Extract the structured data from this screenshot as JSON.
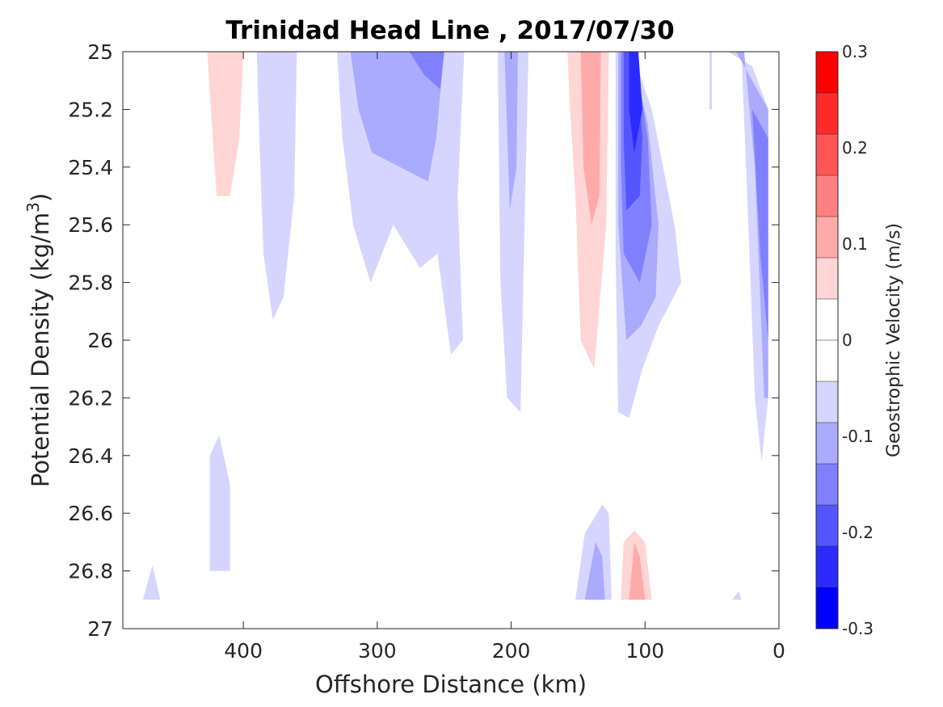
{
  "chart_data": {
    "type": "heatmap",
    "subtype": "filled-contour",
    "title": "Trinidad Head Line , 2017/07/30",
    "xlabel": "Offshore Distance (km)",
    "ylabel": "Potential Density (kg/m",
    "ylabel_sup": "3",
    "ylabel_close": ")",
    "xlim": [
      490,
      0
    ],
    "x_reversed": true,
    "ylim": [
      25,
      27
    ],
    "y_reversed": true,
    "xticks": [
      400,
      300,
      200,
      100,
      0
    ],
    "xtick_labels": [
      "400",
      "300",
      "200",
      "100",
      "0"
    ],
    "yticks": [
      25,
      25.2,
      25.4,
      25.6,
      25.8,
      26,
      26.2,
      26.4,
      26.6,
      26.8,
      27
    ],
    "ytick_labels": [
      "25",
      "25.2",
      "25.4",
      "25.6",
      "25.8",
      "26",
      "26.2",
      "26.4",
      "26.6",
      "26.8",
      "27"
    ],
    "grid": false,
    "colorbar": {
      "label": "Geostrophic Velocity (m/s)",
      "limits": [
        -0.3,
        0.3
      ],
      "levels": [
        -0.3,
        -0.25,
        -0.2,
        -0.15,
        -0.1,
        -0.05,
        0,
        0.05,
        0.1,
        0.15,
        0.2,
        0.25,
        0.3
      ],
      "ticks": [
        0.3,
        0.2,
        0.1,
        0,
        -0.1,
        -0.2,
        -0.3
      ],
      "tick_labels": [
        "0.3",
        "0.2",
        "0.1",
        "0",
        "-0.1",
        "-0.2",
        "-0.3"
      ],
      "colors_low_to_high": [
        "#0000ff",
        "#2b2bff",
        "#5555ff",
        "#8080ff",
        "#aaaaff",
        "#d5d5ff",
        "#ffffff",
        "#ffffff",
        "#ffd5d5",
        "#ffaaaa",
        "#ff8080",
        "#ff5555",
        "#ff2b2b",
        "#ff0000"
      ]
    },
    "regions": [
      {
        "v": 0.025,
        "pts": [
          [
            478,
            25.0
          ],
          [
            463,
            25.0
          ],
          [
            460,
            25.15
          ],
          [
            470,
            25.3
          ],
          [
            476,
            25.4
          ],
          [
            478,
            25.2
          ]
        ]
      },
      {
        "v": 0.025,
        "pts": [
          [
            440,
            25.0
          ],
          [
            395,
            25.0
          ],
          [
            397,
            25.4
          ],
          [
            402,
            25.7
          ],
          [
            412,
            25.8
          ],
          [
            425,
            25.8
          ],
          [
            430,
            25.5
          ],
          [
            437,
            25.2
          ]
        ]
      },
      {
        "v": 0.075,
        "pts": [
          [
            427,
            25.0
          ],
          [
            400,
            25.0
          ],
          [
            403,
            25.3
          ],
          [
            410,
            25.5
          ],
          [
            420,
            25.5
          ]
        ]
      },
      {
        "v": -0.025,
        "pts": [
          [
            390,
            25.0
          ],
          [
            360,
            25.0
          ],
          [
            362,
            25.5
          ],
          [
            370,
            25.85
          ],
          [
            378,
            25.93
          ],
          [
            385,
            25.7
          ],
          [
            388,
            25.3
          ]
        ]
      },
      {
        "v": -0.025,
        "pts": [
          [
            330,
            25.0
          ],
          [
            235,
            25.0
          ],
          [
            240,
            25.5
          ],
          [
            236,
            26.0
          ],
          [
            245,
            26.05
          ],
          [
            255,
            25.7
          ],
          [
            268,
            25.75
          ],
          [
            288,
            25.6
          ],
          [
            305,
            25.8
          ],
          [
            318,
            25.6
          ],
          [
            326,
            25.3
          ]
        ]
      },
      {
        "v": -0.075,
        "pts": [
          [
            320,
            25.0
          ],
          [
            250,
            25.0
          ],
          [
            256,
            25.3
          ],
          [
            262,
            25.45
          ],
          [
            283,
            25.4
          ],
          [
            304,
            25.35
          ],
          [
            314,
            25.2
          ]
        ]
      },
      {
        "v": -0.125,
        "pts": [
          [
            276,
            25.0
          ],
          [
            250,
            25.0
          ],
          [
            253,
            25.13
          ],
          [
            265,
            25.08
          ]
        ]
      },
      {
        "v": -0.025,
        "pts": [
          [
            210,
            25.0
          ],
          [
            187,
            25.0
          ],
          [
            190,
            25.6
          ],
          [
            193,
            26.25
          ],
          [
            203,
            26.2
          ],
          [
            208,
            25.8
          ]
        ]
      },
      {
        "v": -0.075,
        "pts": [
          [
            205,
            25.0
          ],
          [
            195,
            25.0
          ],
          [
            196,
            25.4
          ],
          [
            201,
            25.55
          ]
        ]
      },
      {
        "v": 0.025,
        "pts": [
          [
            172,
            25.0
          ],
          [
            125,
            25.0
          ],
          [
            127,
            25.6
          ],
          [
            131,
            26.3
          ],
          [
            146,
            26.35
          ],
          [
            155,
            26.0
          ],
          [
            165,
            25.6
          ],
          [
            172,
            25.2
          ]
        ]
      },
      {
        "v": 0.075,
        "pts": [
          [
            158,
            25.0
          ],
          [
            127,
            25.0
          ],
          [
            129,
            25.6
          ],
          [
            138,
            26.1
          ],
          [
            148,
            26.0
          ],
          [
            152,
            25.5
          ],
          [
            156,
            25.2
          ]
        ]
      },
      {
        "v": 0.125,
        "pts": [
          [
            148,
            25.0
          ],
          [
            133,
            25.0
          ],
          [
            134,
            25.5
          ],
          [
            140,
            25.6
          ],
          [
            146,
            25.4
          ]
        ]
      },
      {
        "v": -0.025,
        "pts": [
          [
            122,
            25.0
          ],
          [
            110,
            25.0
          ],
          [
            95,
            25.2
          ],
          [
            78,
            25.6
          ],
          [
            73,
            25.8
          ],
          [
            90,
            25.95
          ],
          [
            102,
            26.1
          ],
          [
            112,
            26.27
          ],
          [
            120,
            26.25
          ],
          [
            122,
            25.7
          ]
        ]
      },
      {
        "v": -0.075,
        "pts": [
          [
            120,
            25.0
          ],
          [
            110,
            25.0
          ],
          [
            98,
            25.25
          ],
          [
            90,
            25.6
          ],
          [
            92,
            25.85
          ],
          [
            103,
            25.95
          ],
          [
            114,
            26.0
          ],
          [
            120,
            25.6
          ]
        ]
      },
      {
        "v": -0.125,
        "pts": [
          [
            118,
            25.0
          ],
          [
            108,
            25.0
          ],
          [
            98,
            25.3
          ],
          [
            95,
            25.6
          ],
          [
            104,
            25.8
          ],
          [
            116,
            25.7
          ],
          [
            118,
            25.4
          ]
        ]
      },
      {
        "v": -0.175,
        "pts": [
          [
            116,
            25.0
          ],
          [
            107,
            25.0
          ],
          [
            102,
            25.3
          ],
          [
            104,
            25.5
          ],
          [
            114,
            25.55
          ],
          [
            116,
            25.3
          ]
        ]
      },
      {
        "v": -0.225,
        "pts": [
          [
            112,
            25.0
          ],
          [
            105,
            25.0
          ],
          [
            102,
            25.2
          ],
          [
            108,
            25.35
          ],
          [
            112,
            25.2
          ]
        ]
      },
      {
        "v": -0.025,
        "pts": [
          [
            38,
            25.0
          ],
          [
            28,
            25.0
          ],
          [
            22,
            25.7
          ],
          [
            18,
            26.2
          ],
          [
            13,
            26.42
          ],
          [
            8,
            26.2
          ],
          [
            8,
            25.2
          ],
          [
            20,
            25.05
          ]
        ]
      },
      {
        "v": -0.075,
        "pts": [
          [
            32,
            25.0
          ],
          [
            26,
            25.0
          ],
          [
            18,
            25.4
          ],
          [
            11,
            26.2
          ],
          [
            8,
            26.2
          ],
          [
            8,
            25.2
          ]
        ]
      },
      {
        "v": -0.125,
        "pts": [
          [
            20,
            25.2
          ],
          [
            8,
            25.3
          ],
          [
            8,
            26.0
          ],
          [
            14,
            25.7
          ]
        ]
      },
      {
        "v": -0.025,
        "pts": [
          [
            52,
            25.0
          ],
          [
            50,
            25.0
          ],
          [
            50,
            25.2
          ],
          [
            52,
            25.2
          ]
        ]
      },
      {
        "v": -0.025,
        "pts": [
          [
            425,
            26.4
          ],
          [
            418,
            26.33
          ],
          [
            410,
            26.5
          ],
          [
            410,
            26.8
          ],
          [
            425,
            26.8
          ]
        ]
      },
      {
        "v": -0.025,
        "pts": [
          [
            475,
            26.9
          ],
          [
            462,
            26.9
          ],
          [
            468,
            26.78
          ]
        ]
      },
      {
        "v": 0.025,
        "pts": [
          [
            385,
            26.85
          ],
          [
            368,
            26.9
          ],
          [
            372,
            26.78
          ],
          [
            378,
            26.68
          ]
        ]
      },
      {
        "v": 0.025,
        "pts": [
          [
            323,
            26.9
          ],
          [
            243,
            26.9
          ],
          [
            248,
            26.65
          ],
          [
            258,
            26.77
          ],
          [
            265,
            26.72
          ],
          [
            275,
            26.66
          ],
          [
            285,
            26.68
          ],
          [
            295,
            26.73
          ],
          [
            310,
            26.6
          ]
        ]
      },
      {
        "v": 0.025,
        "pts": [
          [
            202,
            26.9
          ],
          [
            190,
            26.9
          ],
          [
            195,
            26.8
          ],
          [
            200,
            26.78
          ]
        ]
      },
      {
        "v": -0.025,
        "pts": [
          [
            152,
            26.9
          ],
          [
            125,
            26.9
          ],
          [
            127,
            26.6
          ],
          [
            132,
            26.57
          ],
          [
            145,
            26.67
          ]
        ]
      },
      {
        "v": -0.075,
        "pts": [
          [
            145,
            26.9
          ],
          [
            130,
            26.9
          ],
          [
            132,
            26.75
          ],
          [
            137,
            26.7
          ]
        ]
      },
      {
        "v": 0.025,
        "pts": [
          [
            120,
            26.9
          ],
          [
            90,
            26.9
          ],
          [
            95,
            26.7
          ],
          [
            100,
            26.6
          ],
          [
            110,
            26.58
          ],
          [
            118,
            26.62
          ]
        ]
      },
      {
        "v": 0.075,
        "pts": [
          [
            118,
            26.9
          ],
          [
            95,
            26.9
          ],
          [
            100,
            26.7
          ],
          [
            108,
            26.66
          ],
          [
            116,
            26.7
          ]
        ]
      },
      {
        "v": 0.125,
        "pts": [
          [
            112,
            26.9
          ],
          [
            100,
            26.9
          ],
          [
            104,
            26.75
          ],
          [
            108,
            26.7
          ]
        ]
      },
      {
        "v": 0.025,
        "pts": [
          [
            35,
            26.55
          ],
          [
            28,
            26.4
          ],
          [
            18,
            26.5
          ],
          [
            22,
            26.6
          ],
          [
            30,
            26.65
          ]
        ]
      },
      {
        "v": -0.025,
        "pts": [
          [
            35,
            26.9
          ],
          [
            28,
            26.9
          ],
          [
            30,
            26.87
          ]
        ]
      }
    ]
  }
}
